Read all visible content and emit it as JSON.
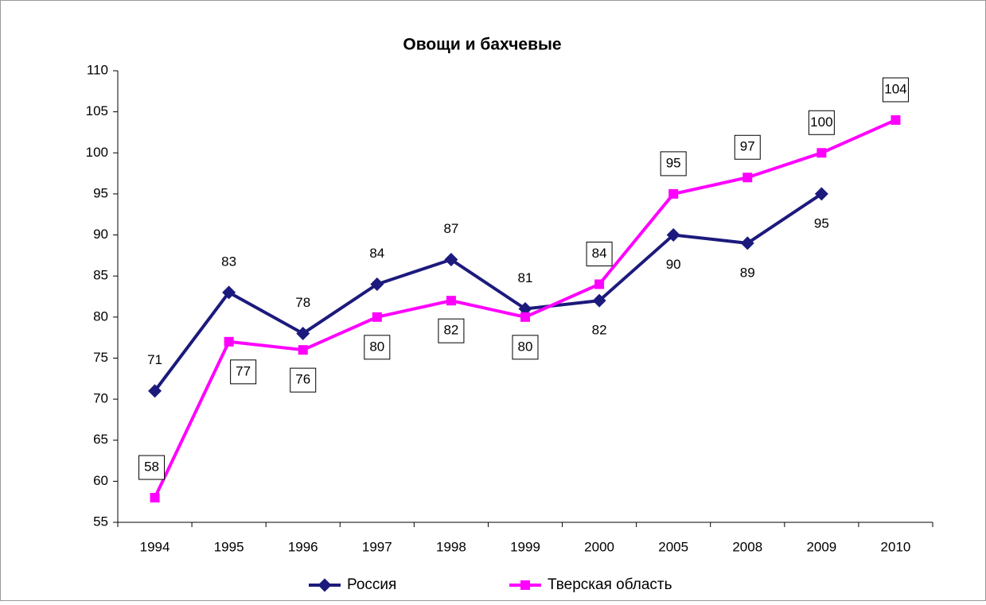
{
  "chart_data": {
    "type": "line",
    "title": "Овощи  и  бахчевые",
    "categories": [
      "1994",
      "1995",
      "1996",
      "1997",
      "1998",
      "1999",
      "2000",
      "2005",
      "2008",
      "2009",
      "2010"
    ],
    "series": [
      {
        "name": "Россия",
        "color": "#1c1a7c",
        "values": [
          71,
          83,
          78,
          84,
          87,
          81,
          82,
          90,
          89,
          95,
          null
        ]
      },
      {
        "name": "Тверская область",
        "color": "#ff00ff",
        "values": [
          58,
          77,
          76,
          80,
          82,
          80,
          84,
          95,
          97,
          100,
          104
        ]
      }
    ],
    "ylim": [
      55,
      110
    ],
    "yticks": [
      55,
      60,
      65,
      70,
      75,
      80,
      85,
      90,
      95,
      100,
      105,
      110
    ],
    "grid": false,
    "legend": "bottom"
  }
}
